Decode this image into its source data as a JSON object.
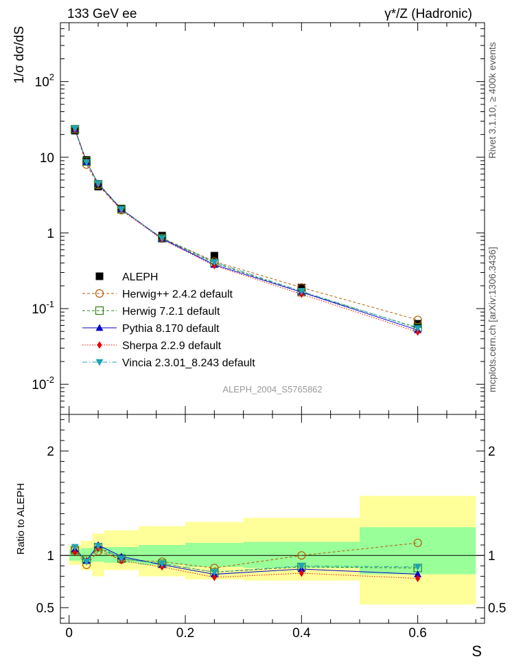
{
  "header": {
    "left_label": "133 GeV ee",
    "right_label": "γ*/Z (Hadronic)"
  },
  "side_labels": {
    "rivet": "Rivet 3.1.10, ≥ 400k events",
    "mcplots": "mcplots.cern.ch [arXiv:1306.3436]"
  },
  "analysis_id": "ALEPH_2004_S5765862",
  "colors": {
    "data": "#000000",
    "herwigpp": "#b35900",
    "herwig7": "#2e7d1a",
    "pythia": "#0000cc",
    "sherpa": "#e60000",
    "vincia": "#1fa3b8",
    "band_inner": "#99ff99",
    "band_outer": "#ffff99"
  },
  "chart_data": [
    {
      "type": "line",
      "panel": "main",
      "ylabel": "1/σ dσ/dS",
      "yscale": "log",
      "ylim": [
        0.004,
        600
      ],
      "xlim": [
        -0.015,
        0.715
      ],
      "y_tick_labels": [
        "10^-2",
        "10^-1",
        "1",
        "10",
        "10^2"
      ],
      "legend_position": "lower-left",
      "x": [
        0.01,
        0.03,
        0.05,
        0.09,
        0.16,
        0.25,
        0.4,
        0.6
      ],
      "series": [
        {
          "key": "aleph",
          "name": "ALEPH",
          "style": "data",
          "values": [
            22.5,
            9.2,
            4.1,
            2.1,
            0.92,
            0.5,
            0.19,
            0.063
          ]
        },
        {
          "key": "herwigpp",
          "name": "Herwig++ 2.4.2 default",
          "style": "circle",
          "values": [
            23.5,
            8.0,
            4.3,
            2.0,
            0.86,
            0.42,
            0.19,
            0.071
          ]
        },
        {
          "key": "herwig7",
          "name": "Herwig 7.2.1 default",
          "style": "square",
          "values": [
            23.5,
            8.8,
            4.4,
            2.05,
            0.85,
            0.4,
            0.165,
            0.056
          ]
        },
        {
          "key": "pythia",
          "name": "Pythia 8.170 default",
          "style": "triangle-up",
          "values": [
            23.5,
            8.7,
            4.5,
            2.07,
            0.84,
            0.38,
            0.165,
            0.052
          ]
        },
        {
          "key": "sherpa",
          "name": "Sherpa 2.2.9 default",
          "style": "diamond",
          "values": [
            23.0,
            8.8,
            4.4,
            2.0,
            0.82,
            0.37,
            0.155,
            0.049
          ]
        },
        {
          "key": "vincia",
          "name": "Vincia 2.3.01_8.243 default",
          "style": "triangle-down",
          "values": [
            24.0,
            8.6,
            4.5,
            2.05,
            0.85,
            0.41,
            0.17,
            0.055
          ]
        }
      ]
    },
    {
      "type": "line",
      "panel": "ratio",
      "ylabel": "Ratio to ALEPH",
      "xlabel": "S",
      "ylim": [
        0.35,
        2.35
      ],
      "y_ticks": [
        0.5,
        1,
        2
      ],
      "y_tick_labels": [
        "0.5",
        "1",
        "2"
      ],
      "x_ticks": [
        0,
        0.2,
        0.4,
        0.6
      ],
      "x_tick_labels": [
        "0",
        "0.2",
        "0.4",
        "0.6"
      ],
      "reference_line": 1,
      "x": [
        0.01,
        0.03,
        0.05,
        0.09,
        0.16,
        0.25,
        0.4,
        0.6
      ],
      "bands": {
        "edges": [
          0,
          0.02,
          0.04,
          0.06,
          0.12,
          0.2,
          0.3,
          0.5,
          0.7
        ],
        "inner_low": [
          0.95,
          0.93,
          0.94,
          0.93,
          0.91,
          0.89,
          0.88,
          0.82
        ],
        "inner_high": [
          1.05,
          1.07,
          1.08,
          1.08,
          1.1,
          1.12,
          1.13,
          1.27
        ],
        "outer_low": [
          0.91,
          0.86,
          0.8,
          0.86,
          0.8,
          0.77,
          0.76,
          0.53
        ],
        "outer_high": [
          1.1,
          1.14,
          1.21,
          1.24,
          1.28,
          1.32,
          1.36,
          1.57
        ]
      },
      "series": [
        {
          "key": "herwigpp",
          "name": "Herwig++ 2.4.2 default",
          "style": "circle",
          "values": [
            1.05,
            0.91,
            1.04,
            0.96,
            0.94,
            0.88,
            1.0,
            1.12
          ]
        },
        {
          "key": "herwig7",
          "name": "Herwig 7.2.1 default",
          "style": "square",
          "values": [
            1.05,
            0.96,
            1.08,
            0.97,
            0.92,
            0.84,
            0.89,
            0.88
          ]
        },
        {
          "key": "pythia",
          "name": "Pythia 8.170 default",
          "style": "triangle-up",
          "values": [
            1.06,
            0.95,
            1.1,
            0.99,
            0.91,
            0.82,
            0.87,
            0.82
          ]
        },
        {
          "key": "sherpa",
          "name": "Sherpa 2.2.9 default",
          "style": "diamond",
          "values": [
            1.03,
            0.95,
            1.07,
            0.95,
            0.89,
            0.79,
            0.83,
            0.78
          ]
        },
        {
          "key": "vincia",
          "name": "Vincia 2.3.01_8.243 default",
          "style": "triangle-down",
          "values": [
            1.08,
            0.94,
            1.09,
            0.97,
            0.92,
            0.84,
            0.9,
            0.89
          ]
        }
      ]
    }
  ]
}
